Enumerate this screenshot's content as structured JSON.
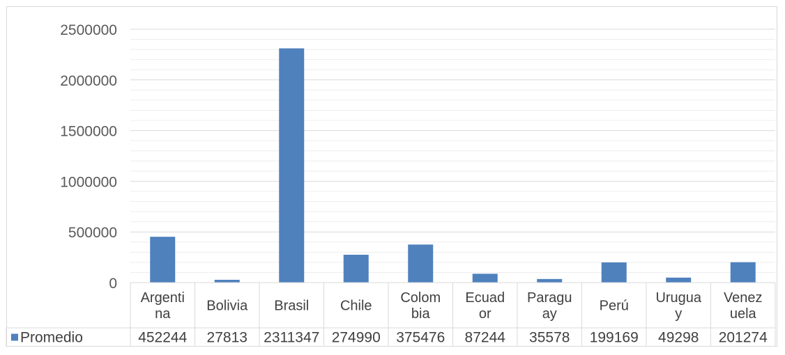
{
  "chart_data": {
    "type": "bar",
    "categories": [
      [
        "Argenti",
        "na"
      ],
      [
        "Bolivia"
      ],
      [
        "Brasil"
      ],
      [
        "Chile"
      ],
      [
        "Colom",
        "bia"
      ],
      [
        "Ecuad",
        "or"
      ],
      [
        "Paragu",
        "ay"
      ],
      [
        "Perú"
      ],
      [
        "Urugua",
        "y"
      ],
      [
        "Venez",
        "uela"
      ]
    ],
    "series": [
      {
        "name": "Promedio",
        "color": "#4f81bd",
        "values": [
          452244,
          27813,
          2311347,
          274990,
          375476,
          87244,
          35578,
          199169,
          49298,
          201274
        ]
      }
    ],
    "ylim": [
      0,
      2500000
    ],
    "yticks": [
      0,
      500000,
      1000000,
      1500000,
      2000000,
      2500000
    ],
    "minor_grid_step": 100000,
    "data_table": true,
    "legend": "data-table-key"
  }
}
